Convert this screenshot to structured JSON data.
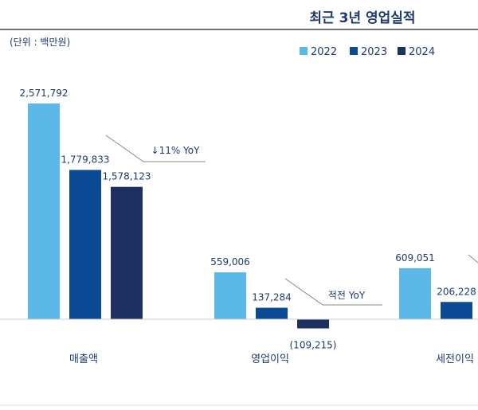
{
  "chart_data": {
    "type": "bar",
    "title": "최근 3년 영업실적",
    "unit_label": "(단위 : 백만원)",
    "categories": [
      "매출액",
      "영업이익",
      "세전이익"
    ],
    "series": [
      {
        "name": "2022",
        "color": "#5cb8e8",
        "values": [
          2571792,
          559006,
          609051
        ]
      },
      {
        "name": "2023",
        "color": "#0a4a94",
        "values": [
          1779833,
          137284,
          206228
        ]
      },
      {
        "name": "2024",
        "color": "#1e2f62",
        "values": [
          1578123,
          -109215,
          null
        ]
      }
    ],
    "value_labels": [
      [
        "2,571,792",
        "1,779,833",
        "1,578,123"
      ],
      [
        "559,006",
        "137,284",
        "(109,215)"
      ],
      [
        "609,051",
        "206,228",
        ""
      ]
    ],
    "annotations": [
      "↓11% YoY",
      "적전 YoY"
    ],
    "legend": "top-right",
    "grid": false
  }
}
